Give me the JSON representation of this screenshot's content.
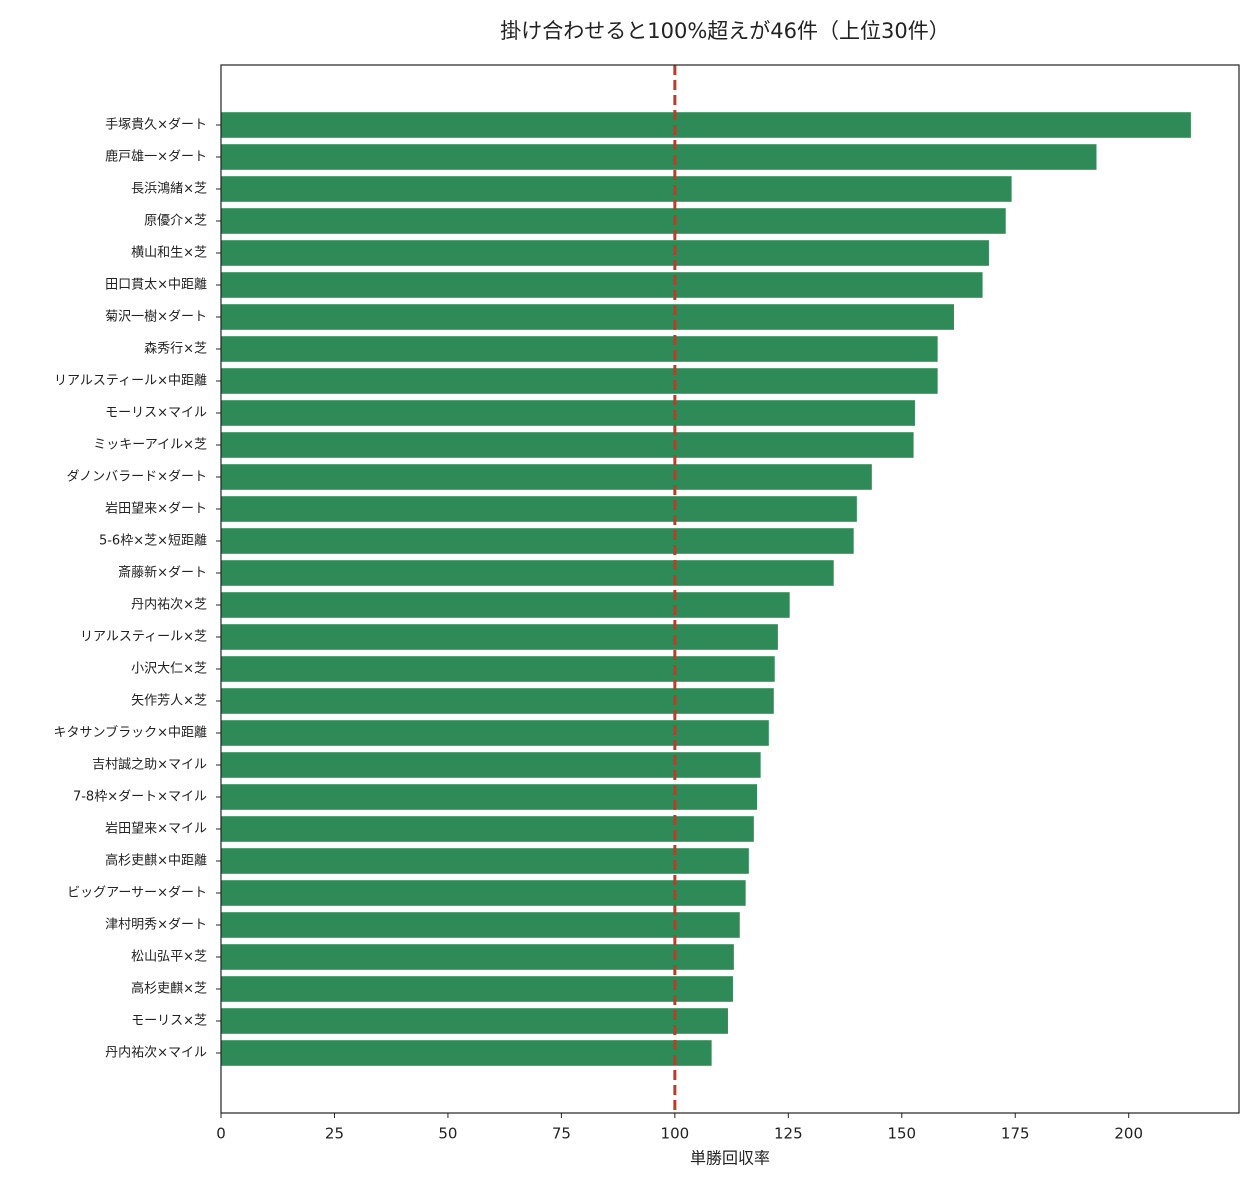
{
  "chart_data": {
    "type": "barh",
    "title": "掛け合わせると100%超えが46件（上位30件）",
    "x_label": "単勝回収率",
    "categories": [
      "手塚貴久×ダート",
      "鹿戸雄一×ダート",
      "長浜鴻緒×芝",
      "原優介×芝",
      "横山和生×芝",
      "田口貫太×中距離",
      "菊沢一樹×ダート",
      "森秀行×芝",
      "リアルスティール×中距離",
      "モーリス×マイル",
      "ミッキーアイル×芝",
      "ダノンバラード×ダート",
      "岩田望来×ダート",
      "5-6枠×芝×短距離",
      "斎藤新×ダート",
      "丹内祐次×芝",
      "リアルスティール×芝",
      "小沢大仁×芝",
      "矢作芳人×芝",
      "キタサンブラック×中距離",
      "吉村誠之助×マイル",
      "7-8枠×ダート×マイル",
      "岩田望来×マイル",
      "高杉吏麒×中距離",
      "ビッグアーサー×ダート",
      "津村明秀×ダート",
      "松山弘平×芝",
      "高杉吏麒×芝",
      "モーリス×芝",
      "丹内祐次×マイル"
    ],
    "values": [
      213.7,
      192.9,
      174.2,
      172.9,
      169.2,
      167.8,
      161.5,
      157.9,
      157.9,
      152.9,
      152.6,
      143.4,
      140.1,
      139.4,
      135.0,
      125.3,
      122.7,
      122.0,
      121.8,
      120.7,
      118.9,
      118.1,
      117.4,
      116.3,
      115.6,
      114.3,
      113.0,
      112.8,
      111.7,
      108.1
    ],
    "color": "#2e8b57",
    "xlim": [
      0,
      224.3
    ],
    "xticks": [
      0,
      25,
      50,
      75,
      100,
      125,
      150,
      175,
      200
    ],
    "ref_line": 100,
    "ref_line_color": "#c0392b"
  }
}
